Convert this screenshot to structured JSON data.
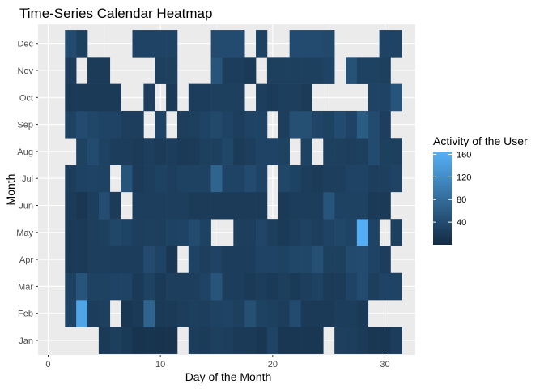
{
  "chart_data": {
    "type": "heatmap",
    "title": "Time-Series Calendar Heatmap",
    "xlabel": "Day of the Month",
    "ylabel": "Month",
    "x_ticks": [
      0,
      10,
      20,
      30
    ],
    "xlim": [
      -0.9,
      32.7
    ],
    "months": [
      "Jan",
      "Feb",
      "Mar",
      "Apr",
      "May",
      "Jun",
      "Jul",
      "Aug",
      "Sep",
      "Oct",
      "Nov",
      "Dec"
    ],
    "legend": {
      "title": "Activity of the User",
      "ticks": [
        40,
        80,
        120,
        160
      ],
      "range": [
        0,
        165
      ],
      "low_color": "#132B43",
      "high_color": "#56B1F7"
    },
    "panel_background": "#EBEBEB",
    "grid": true,
    "values": [
      [
        null,
        null,
        null,
        null,
        18,
        24,
        18,
        10,
        12,
        10,
        10,
        null,
        22,
        20,
        26,
        24,
        18,
        18,
        14,
        30,
        14,
        14,
        14,
        14,
        null,
        26,
        24,
        20,
        14,
        14,
        22
      ],
      [
        null,
        30,
        150,
        22,
        26,
        null,
        14,
        18,
        70,
        18,
        18,
        22,
        26,
        24,
        28,
        30,
        26,
        44,
        28,
        26,
        22,
        40,
        18,
        18,
        18,
        22,
        22,
        18,
        null,
        null,
        null
      ],
      [
        null,
        28,
        50,
        28,
        28,
        30,
        30,
        18,
        28,
        18,
        24,
        24,
        24,
        30,
        50,
        22,
        22,
        18,
        22,
        18,
        24,
        18,
        24,
        28,
        20,
        20,
        30,
        40,
        24,
        30,
        30
      ],
      [
        null,
        18,
        18,
        24,
        24,
        22,
        22,
        22,
        40,
        30,
        14,
        null,
        30,
        24,
        30,
        22,
        22,
        22,
        30,
        30,
        28,
        34,
        34,
        44,
        26,
        26,
        38,
        40,
        30,
        22,
        null
      ],
      [
        null,
        18,
        18,
        24,
        26,
        34,
        30,
        24,
        26,
        24,
        28,
        30,
        40,
        28,
        null,
        null,
        24,
        24,
        32,
        24,
        18,
        24,
        28,
        24,
        30,
        34,
        30,
        160,
        30,
        null,
        26
      ],
      [
        null,
        20,
        14,
        24,
        42,
        20,
        null,
        24,
        24,
        24,
        24,
        24,
        20,
        20,
        20,
        20,
        20,
        20,
        20,
        null,
        18,
        22,
        22,
        22,
        50,
        28,
        28,
        28,
        18,
        18,
        null
      ],
      [
        null,
        22,
        28,
        30,
        28,
        null,
        50,
        20,
        24,
        28,
        24,
        28,
        28,
        28,
        70,
        30,
        30,
        40,
        30,
        null,
        34,
        28,
        22,
        20,
        24,
        24,
        30,
        30,
        24,
        26,
        30
      ],
      [
        null,
        null,
        28,
        40,
        28,
        22,
        22,
        20,
        24,
        20,
        22,
        18,
        20,
        26,
        26,
        34,
        20,
        24,
        30,
        30,
        28,
        null,
        28,
        null,
        26,
        26,
        24,
        26,
        40,
        26,
        26
      ],
      [
        null,
        28,
        40,
        34,
        30,
        30,
        24,
        24,
        null,
        30,
        null,
        24,
        26,
        30,
        36,
        30,
        24,
        30,
        30,
        null,
        24,
        44,
        44,
        32,
        28,
        40,
        30,
        60,
        40,
        24,
        null
      ],
      [
        null,
        18,
        18,
        18,
        18,
        18,
        null,
        null,
        24,
        null,
        18,
        null,
        22,
        22,
        26,
        26,
        26,
        null,
        24,
        20,
        24,
        24,
        20,
        null,
        null,
        null,
        null,
        null,
        30,
        30,
        50
      ]
    ],
    "values_rest": [
      [
        null,
        22,
        null,
        20,
        20,
        null,
        null,
        null,
        null,
        26,
        26,
        null,
        null,
        null,
        50,
        22,
        22,
        18,
        null,
        26,
        26,
        26,
        26,
        26,
        30,
        null,
        48,
        28,
        28,
        26,
        null
      ],
      [
        null,
        40,
        26,
        null,
        null,
        null,
        null,
        30,
        30,
        30,
        30,
        null,
        null,
        null,
        40,
        40,
        40,
        null,
        28,
        null,
        null,
        40,
        40,
        40,
        36,
        null,
        null,
        null,
        null,
        30,
        30
      ]
    ]
  }
}
